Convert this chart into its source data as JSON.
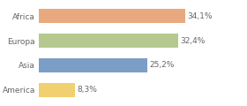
{
  "categories": [
    "Africa",
    "Europa",
    "Asia",
    "America"
  ],
  "values": [
    34.1,
    32.4,
    25.2,
    8.3
  ],
  "labels": [
    "34,1%",
    "32,4%",
    "25,2%",
    "8,3%"
  ],
  "bar_colors": [
    "#e8a97e",
    "#b5c98e",
    "#7b9ec7",
    "#f0d070"
  ],
  "background_color": "#ffffff",
  "xlim": [
    0,
    48
  ],
  "bar_height": 0.55,
  "label_fontsize": 6.5,
  "tick_fontsize": 6.5,
  "label_color": "#666666",
  "tick_color": "#666666"
}
